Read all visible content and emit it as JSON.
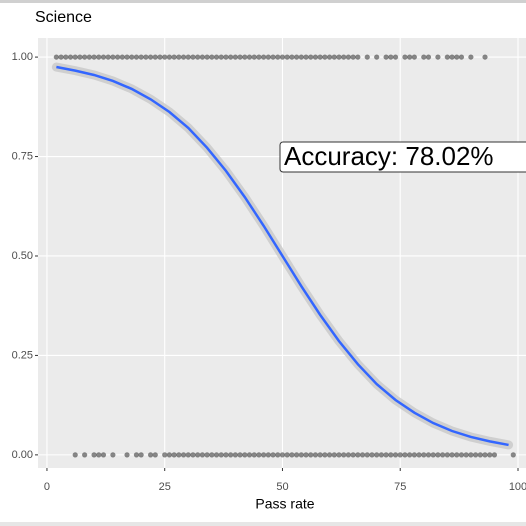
{
  "chart_data": {
    "type": "logistic",
    "title": "Science",
    "x_label": "Pass rate",
    "annotation": "Accuracy: 78.02%",
    "xlim": [
      -1.9,
      101.7
    ],
    "ylim": [
      -0.033,
      1.048
    ],
    "xticks": [
      0,
      25,
      50,
      75,
      100
    ],
    "yticks": [
      {
        "value": 0,
        "label": "0.00"
      },
      {
        "value": 0.25,
        "label": "0.25"
      },
      {
        "value": 0.5,
        "label": "0.50"
      },
      {
        "value": 0.75,
        "label": "0.75"
      },
      {
        "value": 1,
        "label": "1.00"
      }
    ],
    "grid": true,
    "point_color": "#000000",
    "line_color": "#3366ff",
    "band_color": "#c8c8c8",
    "points": {
      "x": [
        2,
        3,
        4,
        5,
        6,
        7,
        8,
        9,
        10,
        11,
        12,
        13,
        14,
        15,
        16,
        17,
        18,
        19,
        20,
        21,
        22,
        23,
        24,
        25,
        26,
        27,
        28,
        29,
        30,
        31,
        32,
        33,
        34,
        35,
        36,
        37,
        38,
        39,
        40,
        41,
        42,
        43,
        44,
        45,
        46,
        47,
        48,
        49,
        50,
        51,
        52,
        53,
        54,
        55,
        56,
        57,
        58,
        59,
        60,
        61,
        62,
        63,
        64,
        65,
        66,
        68,
        70,
        72,
        73,
        74,
        76,
        77,
        78,
        80,
        81,
        83,
        85,
        86,
        87,
        88,
        90,
        93,
        6,
        8,
        10,
        11,
        12,
        14,
        17,
        19,
        20,
        22,
        23,
        25,
        26,
        27,
        28,
        29,
        30,
        31,
        32,
        33,
        34,
        35,
        36,
        37,
        38,
        39,
        40,
        41,
        42,
        43,
        44,
        45,
        46,
        47,
        48,
        49,
        50,
        51,
        52,
        53,
        54,
        55,
        56,
        57,
        58,
        59,
        60,
        61,
        62,
        63,
        64,
        65,
        66,
        67,
        68,
        69,
        70,
        71,
        72,
        73,
        74,
        75,
        76,
        77,
        78,
        79,
        80,
        81,
        82,
        83,
        84,
        85,
        86,
        87,
        88,
        89,
        90,
        91,
        92,
        93,
        94,
        95,
        99
      ],
      "y": [
        1,
        1,
        1,
        1,
        1,
        1,
        1,
        1,
        1,
        1,
        1,
        1,
        1,
        1,
        1,
        1,
        1,
        1,
        1,
        1,
        1,
        1,
        1,
        1,
        1,
        1,
        1,
        1,
        1,
        1,
        1,
        1,
        1,
        1,
        1,
        1,
        1,
        1,
        1,
        1,
        1,
        1,
        1,
        1,
        1,
        1,
        1,
        1,
        1,
        1,
        1,
        1,
        1,
        1,
        1,
        1,
        1,
        1,
        1,
        1,
        1,
        1,
        1,
        1,
        1,
        1,
        1,
        1,
        1,
        1,
        1,
        1,
        1,
        1,
        1,
        1,
        1,
        1,
        1,
        1,
        1,
        1,
        0,
        0,
        0,
        0,
        0,
        0,
        0,
        0,
        0,
        0,
        0,
        0,
        0,
        0,
        0,
        0,
        0,
        0,
        0,
        0,
        0,
        0,
        0,
        0,
        0,
        0,
        0,
        0,
        0,
        0,
        0,
        0,
        0,
        0,
        0,
        0,
        0,
        0,
        0,
        0,
        0,
        0,
        0,
        0,
        0,
        0,
        0,
        0,
        0,
        0,
        0,
        0,
        0,
        0,
        0,
        0,
        0,
        0,
        0,
        0,
        0,
        0,
        0,
        0,
        0,
        0,
        0,
        0,
        0,
        0,
        0,
        0,
        0,
        0,
        0,
        0,
        0,
        0,
        0,
        0,
        0,
        0,
        0
      ]
    },
    "curve": {
      "x": [
        2,
        6,
        10,
        14,
        18,
        22,
        26,
        30,
        34,
        38,
        42,
        46,
        50,
        54,
        58,
        62,
        66,
        70,
        74,
        78,
        82,
        86,
        90,
        94,
        98
      ],
      "values": [
        0.975,
        0.966,
        0.955,
        0.94,
        0.92,
        0.894,
        0.862,
        0.822,
        0.772,
        0.714,
        0.648,
        0.576,
        0.5,
        0.424,
        0.352,
        0.286,
        0.228,
        0.178,
        0.138,
        0.106,
        0.08,
        0.06,
        0.045,
        0.034,
        0.025
      ]
    }
  }
}
